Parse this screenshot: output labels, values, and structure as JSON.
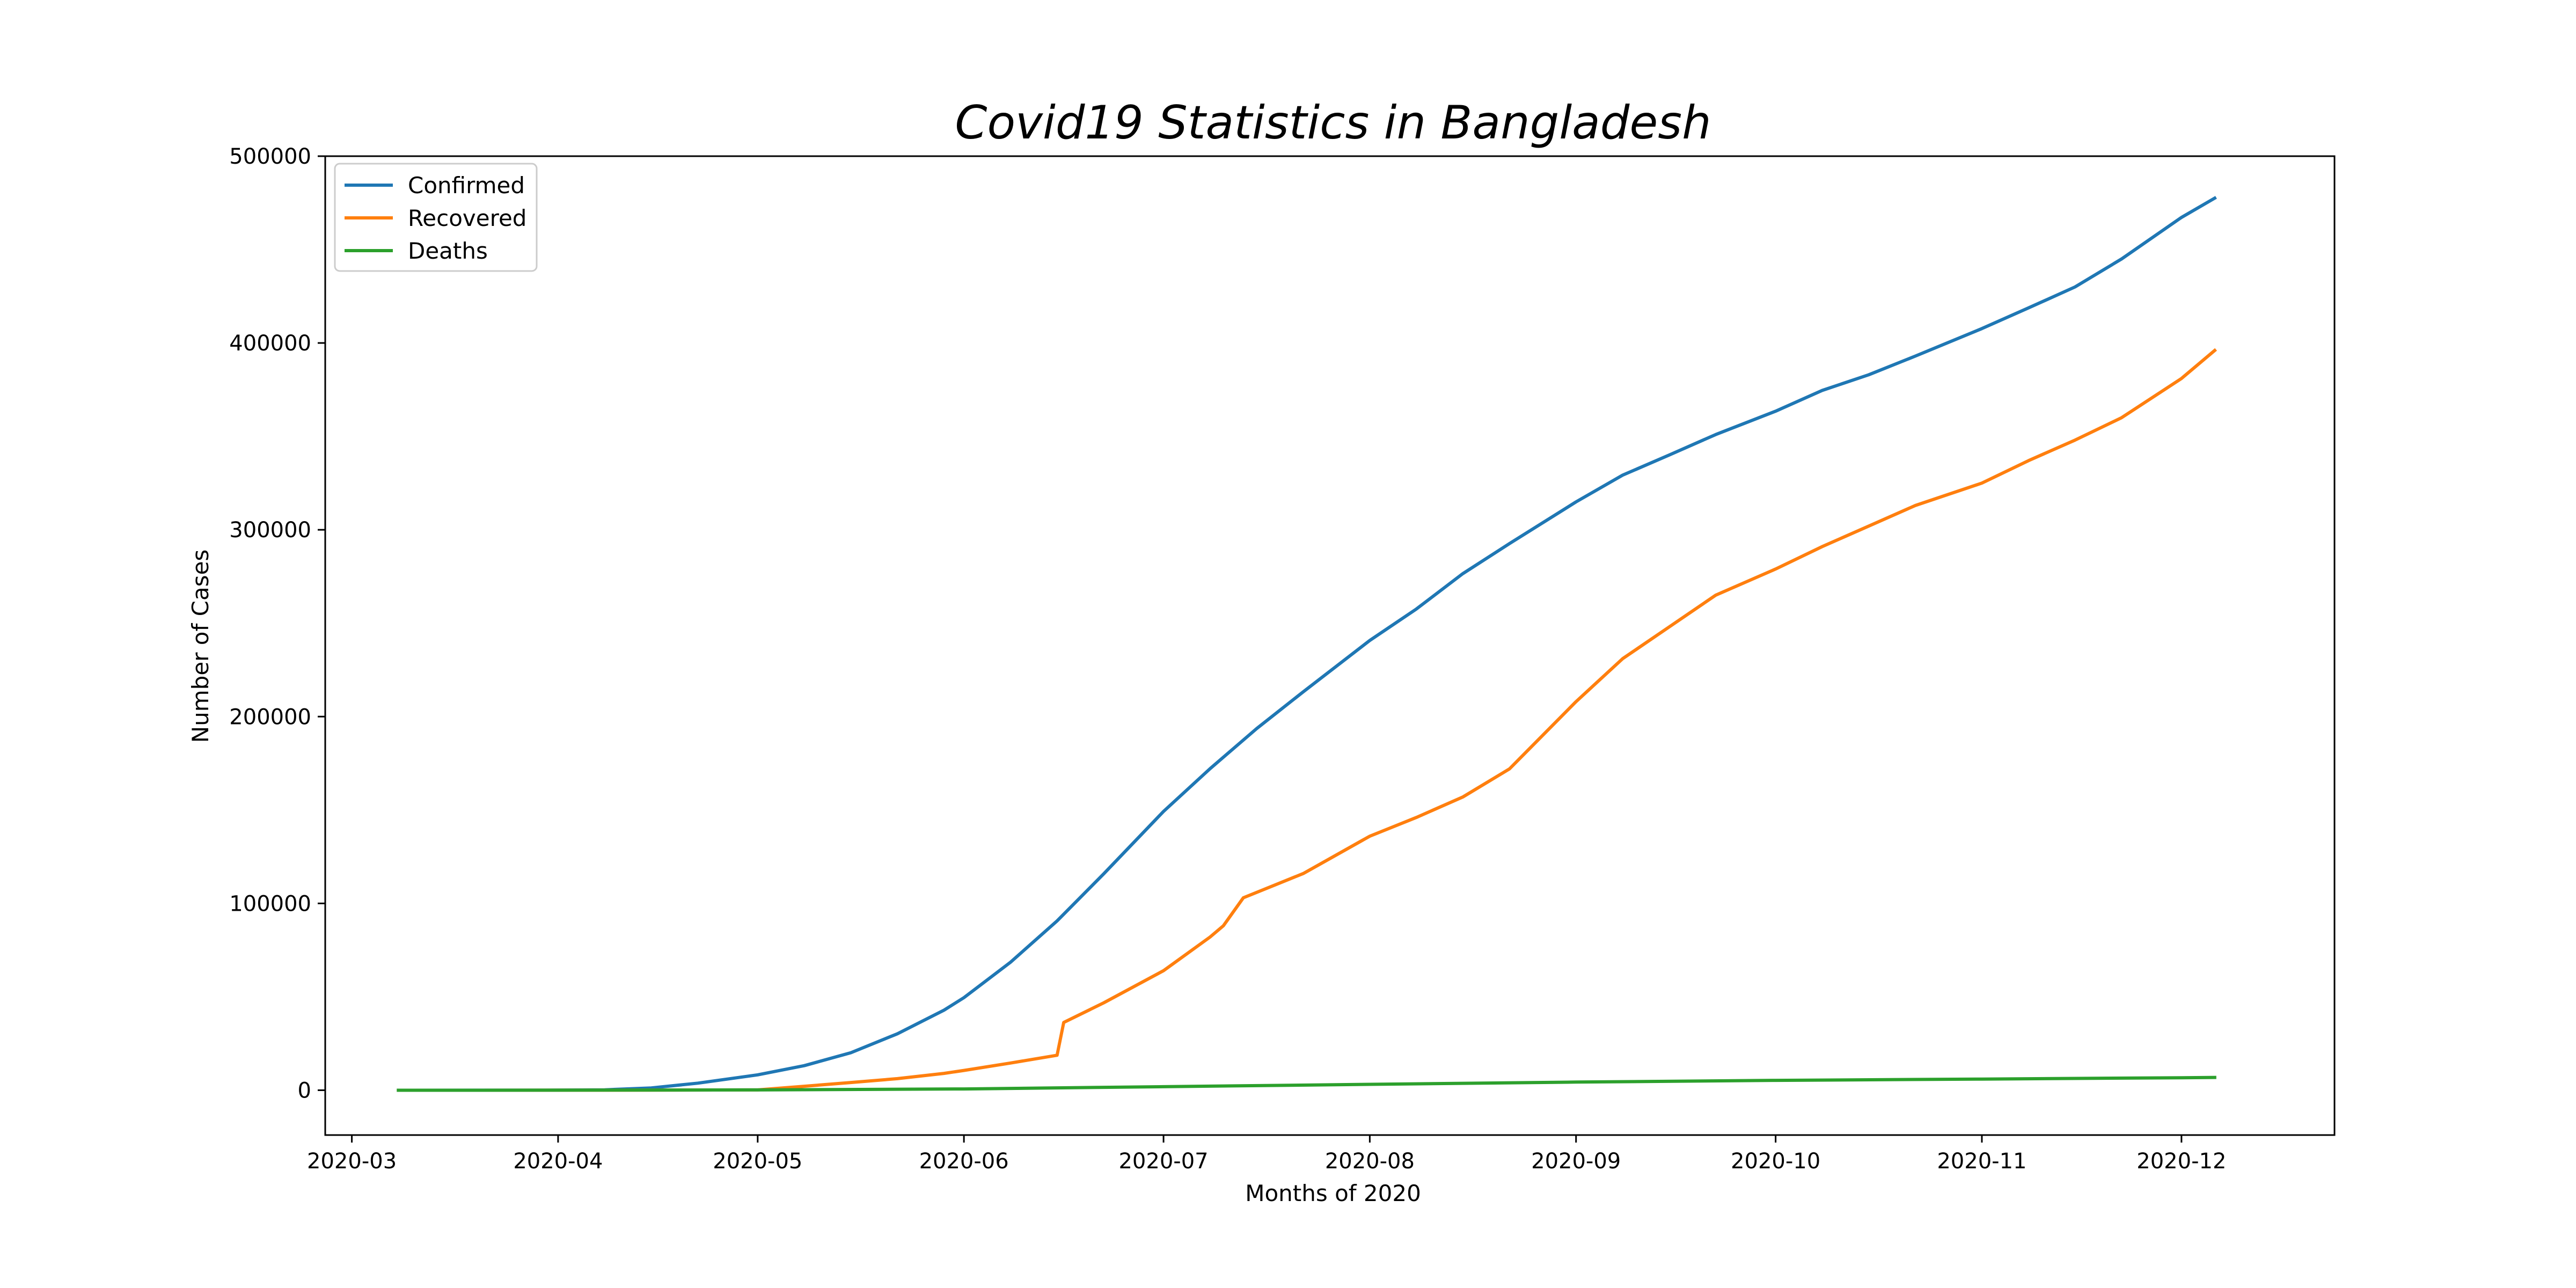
{
  "chart_data": {
    "type": "line",
    "title": "Covid19 Statistics in Bangladesh",
    "xlabel": "Months of 2020",
    "ylabel": "Number of Cases",
    "xlim": [
      "2020-02-26",
      "2020-12-24"
    ],
    "ylim": [
      -24000,
      500000
    ],
    "xticks": [
      "2020-03",
      "2020-04",
      "2020-05",
      "2020-06",
      "2020-07",
      "2020-08",
      "2020-09",
      "2020-10",
      "2020-11",
      "2020-12"
    ],
    "yticks": [
      0,
      100000,
      200000,
      300000,
      400000,
      500000
    ],
    "grid": false,
    "legend_position": "top-left",
    "series": [
      {
        "name": "Confirmed",
        "color": "#1f77b4",
        "points": [
          [
            "2020-03-08",
            0
          ],
          [
            "2020-03-20",
            20
          ],
          [
            "2020-04-01",
            54
          ],
          [
            "2020-04-08",
            218
          ],
          [
            "2020-04-15",
            1231
          ],
          [
            "2020-04-22",
            3772
          ],
          [
            "2020-05-01",
            8238
          ],
          [
            "2020-05-08",
            13134
          ],
          [
            "2020-05-15",
            20065
          ],
          [
            "2020-05-22",
            30205
          ],
          [
            "2020-05-29",
            42844
          ],
          [
            "2020-06-01",
            49534
          ],
          [
            "2020-06-08",
            68504
          ],
          [
            "2020-06-15",
            90619
          ],
          [
            "2020-06-22",
            115786
          ],
          [
            "2020-07-01",
            149258
          ],
          [
            "2020-07-08",
            172134
          ],
          [
            "2020-07-15",
            193590
          ],
          [
            "2020-07-22",
            213254
          ],
          [
            "2020-08-01",
            240746
          ],
          [
            "2020-08-08",
            257600
          ],
          [
            "2020-08-15",
            276549
          ],
          [
            "2020-08-22",
            292625
          ],
          [
            "2020-09-01",
            314946
          ],
          [
            "2020-09-08",
            329251
          ],
          [
            "2020-09-15",
            340000
          ],
          [
            "2020-09-22",
            351000
          ],
          [
            "2020-10-01",
            363479
          ],
          [
            "2020-10-08",
            374592
          ],
          [
            "2020-10-15",
            383000
          ],
          [
            "2020-10-22",
            393000
          ],
          [
            "2020-11-01",
            407684
          ],
          [
            "2020-11-08",
            418764
          ],
          [
            "2020-11-15",
            430000
          ],
          [
            "2020-11-22",
            445000
          ],
          [
            "2020-12-01",
            467225
          ],
          [
            "2020-12-06",
            477545
          ]
        ]
      },
      {
        "name": "Recovered",
        "color": "#ff7f0e",
        "points": [
          [
            "2020-03-08",
            0
          ],
          [
            "2020-04-01",
            25
          ],
          [
            "2020-04-15",
            49
          ],
          [
            "2020-05-01",
            160
          ],
          [
            "2020-05-08",
            2100
          ],
          [
            "2020-05-15",
            4117
          ],
          [
            "2020-05-22",
            6190
          ],
          [
            "2020-05-29",
            9015
          ],
          [
            "2020-06-01",
            10597
          ],
          [
            "2020-06-08",
            14560
          ],
          [
            "2020-06-15",
            18730
          ],
          [
            "2020-06-16",
            36264
          ],
          [
            "2020-06-22",
            46755
          ],
          [
            "2020-07-01",
            64000
          ],
          [
            "2020-07-08",
            82000
          ],
          [
            "2020-07-10",
            88034
          ],
          [
            "2020-07-13",
            103000
          ],
          [
            "2020-07-22",
            116000
          ],
          [
            "2020-08-01",
            136000
          ],
          [
            "2020-08-08",
            146000
          ],
          [
            "2020-08-15",
            157000
          ],
          [
            "2020-08-22",
            172000
          ],
          [
            "2020-09-01",
            208000
          ],
          [
            "2020-09-08",
            231000
          ],
          [
            "2020-09-15",
            248000
          ],
          [
            "2020-09-22",
            265000
          ],
          [
            "2020-10-01",
            279000
          ],
          [
            "2020-10-08",
            291000
          ],
          [
            "2020-10-15",
            302000
          ],
          [
            "2020-10-22",
            313000
          ],
          [
            "2020-11-01",
            325000
          ],
          [
            "2020-11-08",
            337000
          ],
          [
            "2020-11-15",
            348000
          ],
          [
            "2020-11-22",
            360000
          ],
          [
            "2020-12-01",
            381000
          ],
          [
            "2020-12-06",
            396000
          ]
        ]
      },
      {
        "name": "Deaths",
        "color": "#2ca02c",
        "points": [
          [
            "2020-03-08",
            0
          ],
          [
            "2020-04-01",
            6
          ],
          [
            "2020-05-01",
            170
          ],
          [
            "2020-06-01",
            672
          ],
          [
            "2020-07-01",
            1888
          ],
          [
            "2020-08-01",
            3154
          ],
          [
            "2020-09-01",
            4351
          ],
          [
            "2020-10-01",
            5272
          ],
          [
            "2020-11-01",
            5966
          ],
          [
            "2020-12-01",
            6675
          ],
          [
            "2020-12-06",
            6838
          ]
        ]
      }
    ]
  }
}
